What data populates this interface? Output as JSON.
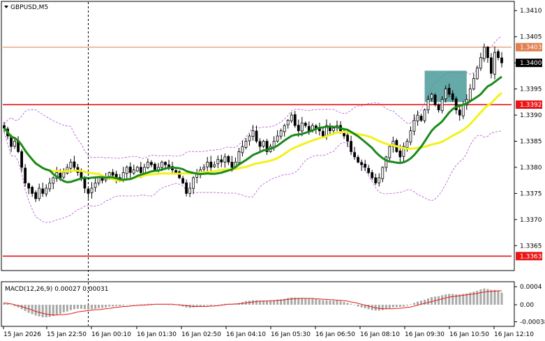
{
  "chart_title": "GBPUSD,M5",
  "macd_label": "MACD(12,26,9) 0.00027 0.00031",
  "colors": {
    "background": "#ffffff",
    "candle": "#000000",
    "ma_fast": "#1a8a1a",
    "ma_slow": "#f2f21a",
    "bollinger": "#b44fd6",
    "level_line": "#e81616",
    "level_line_top": "#e07f4f",
    "box": "#4a9a9a",
    "macd_hist": "#a8a8a8",
    "macd_signal": "#e81616",
    "grid_vline": "#000000"
  },
  "chart_data": {
    "type": "candlestick",
    "symbol": "GBPUSD",
    "timeframe": "M5",
    "ylim": [
      1.33605,
      1.34115
    ],
    "y_ticks": [
      "1.3410",
      "1.3405",
      "1.3400",
      "1.3395",
      "1.3390",
      "1.3385",
      "1.3380",
      "1.3375",
      "1.3370",
      "1.3365"
    ],
    "x_ticks": [
      "15 Jan 2026",
      "15 Jan 22:50",
      "16 Jan 00:10",
      "16 Jan 01:30",
      "16 Jan 02:50",
      "16 Jan 04:10",
      "16 Jan 05:30",
      "16 Jan 06:50",
      "16 Jan 08:10",
      "16 Jan 09:30",
      "16 Jan 10:50",
      "16 Jan 12:10"
    ],
    "price_levels": [
      {
        "label": "1.3403",
        "value": 1.3403,
        "role": "top"
      },
      {
        "label": "1.3400",
        "value": 1.34,
        "role": "current"
      },
      {
        "label": "1.3392",
        "value": 1.3392,
        "role": "level"
      },
      {
        "label": "1.3363",
        "value": 1.3363,
        "role": "level"
      }
    ],
    "highlight_box": {
      "from_bar": 120,
      "to_bar": 132,
      "price_low": 1.33925,
      "price_high": 1.33985
    },
    "dashed_vline_bar": 24,
    "closes": [
      1.33875,
      1.3386,
      1.3384,
      1.3385,
      1.3383,
      1.338,
      1.3377,
      1.3376,
      1.3375,
      1.3374,
      1.3376,
      1.3375,
      1.3376,
      1.3377,
      1.3378,
      1.3379,
      1.3378,
      1.3379,
      1.338,
      1.3381,
      1.338,
      1.3379,
      1.3378,
      1.3376,
      1.3375,
      1.3376,
      1.3377,
      1.3378,
      1.33775,
      1.3378,
      1.3379,
      1.33785,
      1.3378,
      1.33775,
      1.3379,
      1.338,
      1.3379,
      1.33795,
      1.338,
      1.3379,
      1.338,
      1.3381,
      1.33805,
      1.33795,
      1.338,
      1.3381,
      1.33805,
      1.338,
      1.33795,
      1.3379,
      1.3378,
      1.3377,
      1.3375,
      1.3376,
      1.3378,
      1.3379,
      1.33795,
      1.338,
      1.3381,
      1.338,
      1.33805,
      1.33815,
      1.3381,
      1.3382,
      1.3381,
      1.338,
      1.3381,
      1.3383,
      1.3384,
      1.3385,
      1.3386,
      1.3387,
      1.3385,
      1.3384,
      1.3385,
      1.3383,
      1.3384,
      1.3385,
      1.3386,
      1.3387,
      1.3388,
      1.3389,
      1.339,
      1.3388,
      1.3387,
      1.33885,
      1.3388,
      1.3387,
      1.3388,
      1.33875,
      1.3387,
      1.3386,
      1.3388,
      1.3387,
      1.33875,
      1.3388,
      1.3387,
      1.3386,
      1.3385,
      1.3383,
      1.3382,
      1.3381,
      1.33805,
      1.338,
      1.3379,
      1.3378,
      1.3377,
      1.3378,
      1.338,
      1.3382,
      1.3384,
      1.3385,
      1.3383,
      1.3382,
      1.3384,
      1.3385,
      1.3387,
      1.3389,
      1.339,
      1.3389,
      1.3391,
      1.3393,
      1.3394,
      1.3392,
      1.3391,
      1.3393,
      1.3395,
      1.3394,
      1.3393,
      1.3391,
      1.339,
      1.3392,
      1.3393,
      1.3395,
      1.3397,
      1.3399,
      1.3401,
      1.3403,
      1.3401,
      1.3398,
      1.3402,
      1.3401,
      1.34
    ],
    "series": [
      {
        "name": "",
        "kind": "ma_fast"
      },
      {
        "name": "",
        "kind": "ma_slow"
      },
      {
        "name": "",
        "kind": "bollinger"
      }
    ],
    "macd": {
      "y_ticks": [
        "0.0004",
        "0.00",
        "-0.00038"
      ],
      "ylim": [
        -0.00045,
        0.00048
      ],
      "histogram": [
        5e-05,
        3e-05,
        0.0,
        -3e-05,
        -6e-05,
        -0.0001,
        -0.00014,
        -0.00018,
        -0.00021,
        -0.00024,
        -0.00026,
        -0.00028,
        -0.00028,
        -0.00027,
        -0.00025,
        -0.00022,
        -0.0002,
        -0.00017,
        -0.00015,
        -0.00012,
        -0.0001,
        -9e-05,
        -9e-05,
        -0.0001,
        -0.00011,
        -0.0001,
        -9e-05,
        -8e-05,
        -7e-05,
        -6e-05,
        -4e-05,
        -4e-05,
        -3e-05,
        -3e-05,
        -2e-05,
        -1e-05,
        -1e-05,
        0.0,
        1e-05,
        1e-05,
        1e-05,
        2e-05,
        2e-05,
        1e-05,
        1e-05,
        1e-05,
        1e-05,
        0.0,
        0.0,
        -1e-05,
        -2e-05,
        -4e-05,
        -6e-05,
        -7e-05,
        -6e-05,
        -5e-05,
        -4e-05,
        -3e-05,
        -2e-05,
        -2e-05,
        -1e-05,
        0.0,
        1e-05,
        2e-05,
        2e-05,
        2e-05,
        2e-05,
        4e-05,
        6e-05,
        8e-05,
        9e-05,
        0.0001,
        0.0001,
        9e-05,
        9e-05,
        9e-05,
        9e-05,
        0.0001,
        0.00011,
        0.00012,
        0.00013,
        0.00015,
        0.00016,
        0.00016,
        0.00015,
        0.00015,
        0.00014,
        0.00013,
        0.00013,
        0.00012,
        0.00011,
        0.0001,
        0.0001,
        9e-05,
        9e-05,
        9e-05,
        8e-05,
        6e-05,
        4e-05,
        2e-05,
        -1e-05,
        -4e-05,
        -6e-05,
        -8e-05,
        -0.0001,
        -0.00012,
        -0.00013,
        -0.00013,
        -0.00012,
        -0.0001,
        -8e-05,
        -6e-05,
        -5e-05,
        -5e-05,
        -4e-05,
        -2e-05,
        1e-05,
        4e-05,
        7e-05,
        9e-05,
        0.00011,
        0.00014,
        0.00017,
        0.00018,
        0.00019,
        0.00021,
        0.00023,
        0.00024,
        0.00024,
        0.00023,
        0.00023,
        0.00024,
        0.00025,
        0.00027,
        0.00029,
        0.00031,
        0.00034,
        0.00036,
        0.00035,
        0.00033,
        0.00033,
        0.00031,
        0.00027
      ],
      "signal": [
        4e-05,
        3e-05,
        2e-05,
        0.0,
        -2e-05,
        -4e-05,
        -7e-05,
        -9e-05,
        -0.00012,
        -0.00015,
        -0.00017,
        -0.00019,
        -0.00021,
        -0.00022,
        -0.00023,
        -0.00023,
        -0.00022,
        -0.00022,
        -0.00021,
        -0.0002,
        -0.00018,
        -0.00016,
        -0.00015,
        -0.00014,
        -0.00013,
        -0.00012,
        -0.00011,
        -0.00011,
        -0.0001,
        -9e-05,
        -8e-05,
        -7e-05,
        -6e-05,
        -5e-05,
        -4e-05,
        -4e-05,
        -3e-05,
        -2e-05,
        -2e-05,
        -1e-05,
        -1e-05,
        0.0,
        0.0,
        1e-05,
        1e-05,
        1e-05,
        1e-05,
        1e-05,
        1e-05,
        0.0,
        0.0,
        -1e-05,
        -2e-05,
        -3e-05,
        -4e-05,
        -4e-05,
        -4e-05,
        -4e-05,
        -4e-05,
        -3e-05,
        -3e-05,
        -2e-05,
        -1e-05,
        0.0,
        1e-05,
        1e-05,
        2e-05,
        2e-05,
        3e-05,
        4e-05,
        5e-05,
        6e-05,
        7e-05,
        8e-05,
        8e-05,
        8e-05,
        9e-05,
        9e-05,
        0.0001,
        0.0001,
        0.00011,
        0.00012,
        0.00013,
        0.00013,
        0.00014,
        0.00014,
        0.00014,
        0.00014,
        0.00014,
        0.00013,
        0.00013,
        0.00012,
        0.00012,
        0.00011,
        0.00011,
        0.0001,
        0.0001,
        9e-05,
        8e-05,
        6e-05,
        5e-05,
        3e-05,
        1e-05,
        -1e-05,
        -3e-05,
        -5e-05,
        -7e-05,
        -8e-05,
        -9e-05,
        -9e-05,
        -9e-05,
        -9e-05,
        -8e-05,
        -8e-05,
        -7e-05,
        -6e-05,
        -5e-05,
        -3e-05,
        -1e-05,
        1e-05,
        3e-05,
        5e-05,
        7e-05,
        9e-05,
        0.00011,
        0.00013,
        0.00015,
        0.00017,
        0.00018,
        0.00019,
        0.0002,
        0.00021,
        0.00022,
        0.00023,
        0.00024,
        0.00025,
        0.00027,
        0.00028,
        0.00029,
        0.0003,
        0.0003,
        0.00031,
        0.00031
      ]
    }
  }
}
